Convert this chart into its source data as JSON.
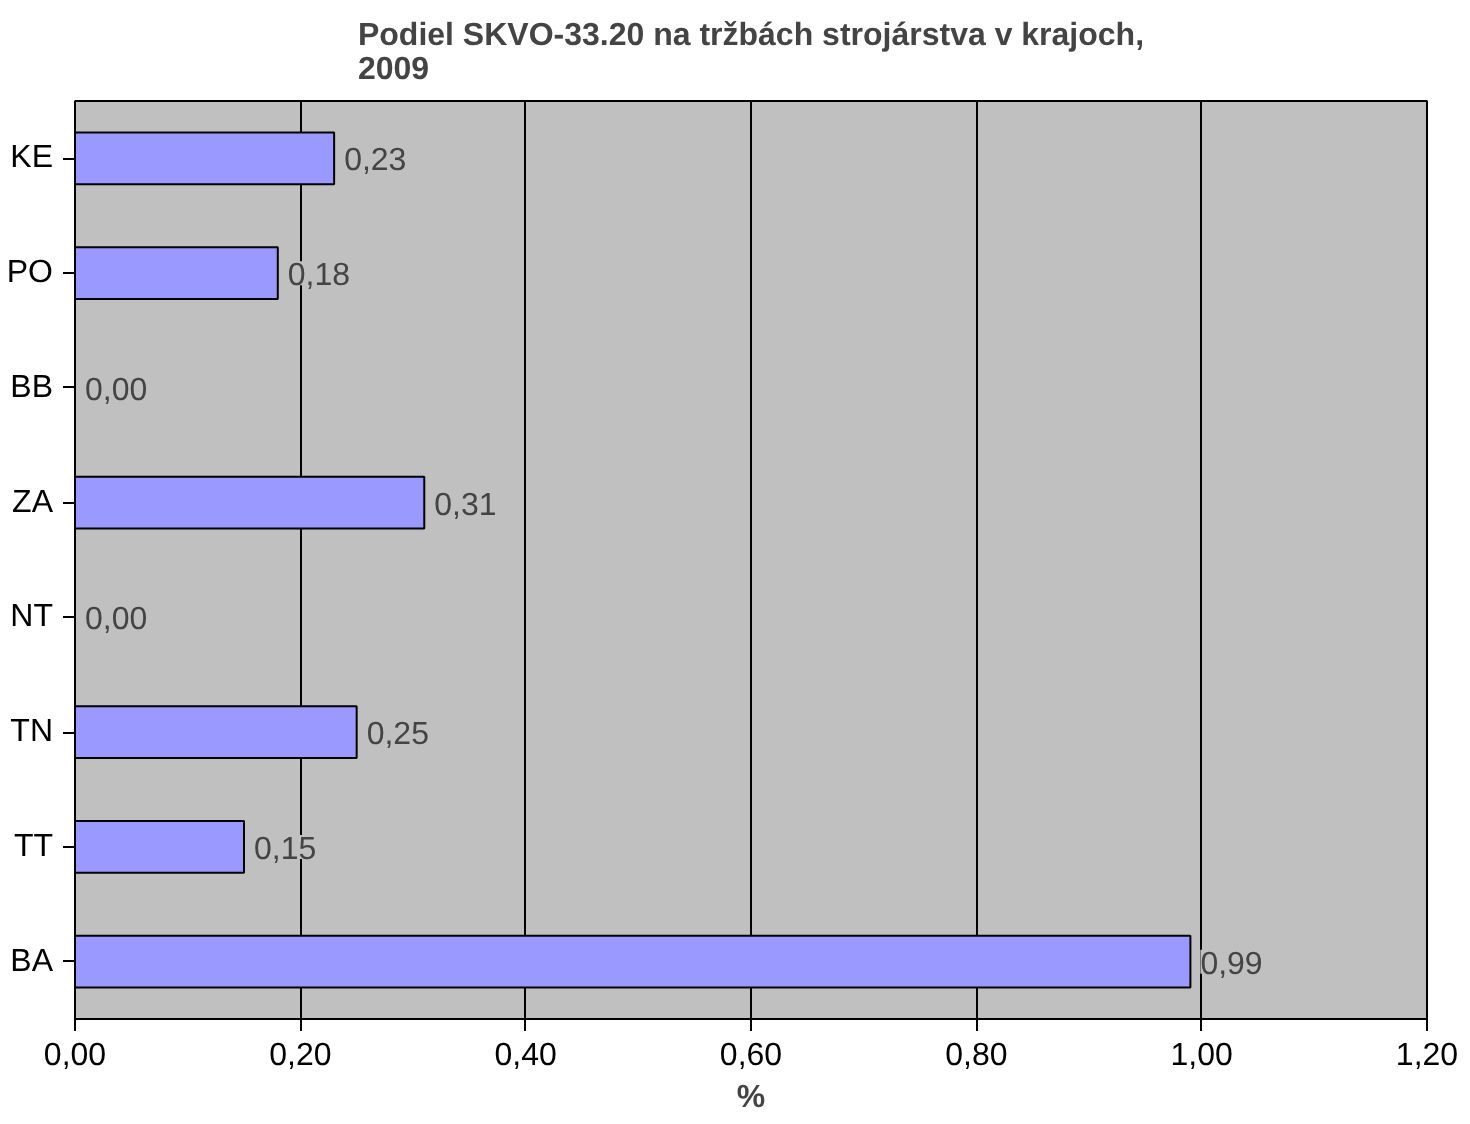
{
  "chart_data": {
    "type": "bar",
    "orientation": "horizontal",
    "title": "Podiel SKVO-33.20 na tržbách strojárstva v krajoch,\n2009",
    "xlabel": "%",
    "categories": [
      "KE",
      "PO",
      "BB",
      "ZA",
      "NT",
      "TN",
      "TT",
      "BA"
    ],
    "values": [
      0.23,
      0.18,
      0.0,
      0.31,
      0.0,
      0.25,
      0.15,
      0.99
    ],
    "value_labels": [
      "0,23",
      "0,18",
      "0,00",
      "0,31",
      "0,00",
      "0,25",
      "0,15",
      "0,99"
    ],
    "color": "#9999ff",
    "grid": "x",
    "xlim": [
      0,
      1.2
    ],
    "xticks": [
      {
        "value": 0,
        "label": "0,00"
      },
      {
        "value": 0.2,
        "label": "0,20"
      },
      {
        "value": 0.4,
        "label": "0,40"
      },
      {
        "value": 0.6,
        "label": "0,60"
      },
      {
        "value": 0.8,
        "label": "0,80"
      },
      {
        "value": 1.0,
        "label": "1,00"
      },
      {
        "value": 1.2,
        "label": "1,20"
      }
    ]
  }
}
